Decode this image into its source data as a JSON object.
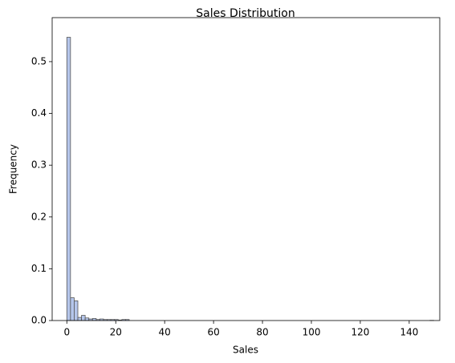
{
  "chart_data": {
    "type": "histogram",
    "title": "Sales Distribution",
    "x_label": "Sales",
    "y_label": "Frequency",
    "bins": [
      0,
      1.5,
      3,
      4.5,
      6,
      7.5,
      9,
      10.5,
      12,
      13.5,
      15,
      16.5,
      18,
      19.5,
      21,
      22.5,
      24,
      25.5,
      27,
      28.5,
      30,
      31.5,
      33,
      34.5,
      36,
      37.5,
      39,
      40.5,
      42,
      43.5,
      45,
      46.5,
      48,
      49.5,
      51,
      52.5,
      54,
      55.5,
      57,
      58.5,
      60,
      61.5,
      63,
      64.5,
      66,
      67.5,
      69,
      70.5,
      72,
      73.5,
      75,
      76.5,
      78,
      79.5,
      81,
      82.5,
      84,
      85.5,
      87,
      88.5,
      90,
      91.5,
      93,
      94.5,
      96,
      97.5,
      99,
      100.5,
      102,
      103.5,
      105,
      106.5,
      108,
      109.5,
      111,
      112.5,
      114,
      115.5,
      117,
      118.5,
      120,
      121.5,
      123,
      124.5,
      126,
      127.5,
      129,
      130.5,
      132,
      133.5,
      135,
      136.5,
      138,
      139.5,
      141,
      142.5,
      144,
      145.5,
      147,
      148.5,
      150
    ],
    "values": [
      0.547,
      0.044,
      0.038,
      0.006,
      0.01,
      0.005,
      0.003,
      0.004,
      0.002,
      0.003,
      0.002,
      0.002,
      0.002,
      0.002,
      0.001,
      0.002,
      0.002,
      0,
      0,
      0,
      0,
      0,
      0,
      0,
      0,
      0,
      0,
      0,
      0,
      0,
      0,
      0,
      0,
      0,
      0,
      0,
      0,
      0,
      0,
      0,
      0,
      0,
      0,
      0,
      0,
      0,
      0,
      0,
      0,
      0,
      0,
      0,
      0,
      0,
      0,
      0,
      0,
      0,
      0,
      0,
      0,
      0,
      0,
      0,
      0,
      0,
      0,
      0,
      0,
      0,
      0,
      0,
      0,
      0,
      0,
      0,
      0,
      0,
      0,
      0,
      0,
      0,
      0,
      0,
      0,
      0,
      0,
      0,
      0,
      0,
      0,
      0,
      0,
      0,
      0,
      0,
      0,
      0,
      0,
      0.0003
    ],
    "color": "#a8bce8",
    "edge_color": "#555555",
    "xlim": [
      -6,
      152.5
    ],
    "xticks": [
      0,
      20,
      40,
      60,
      80,
      100,
      120,
      140
    ],
    "ylim": [
      0,
      0.585
    ],
    "yticks": [
      {
        "value": 0,
        "label": "0.0"
      },
      0.1,
      0.2,
      0.3,
      0.4,
      0.5
    ],
    "grid": false
  }
}
